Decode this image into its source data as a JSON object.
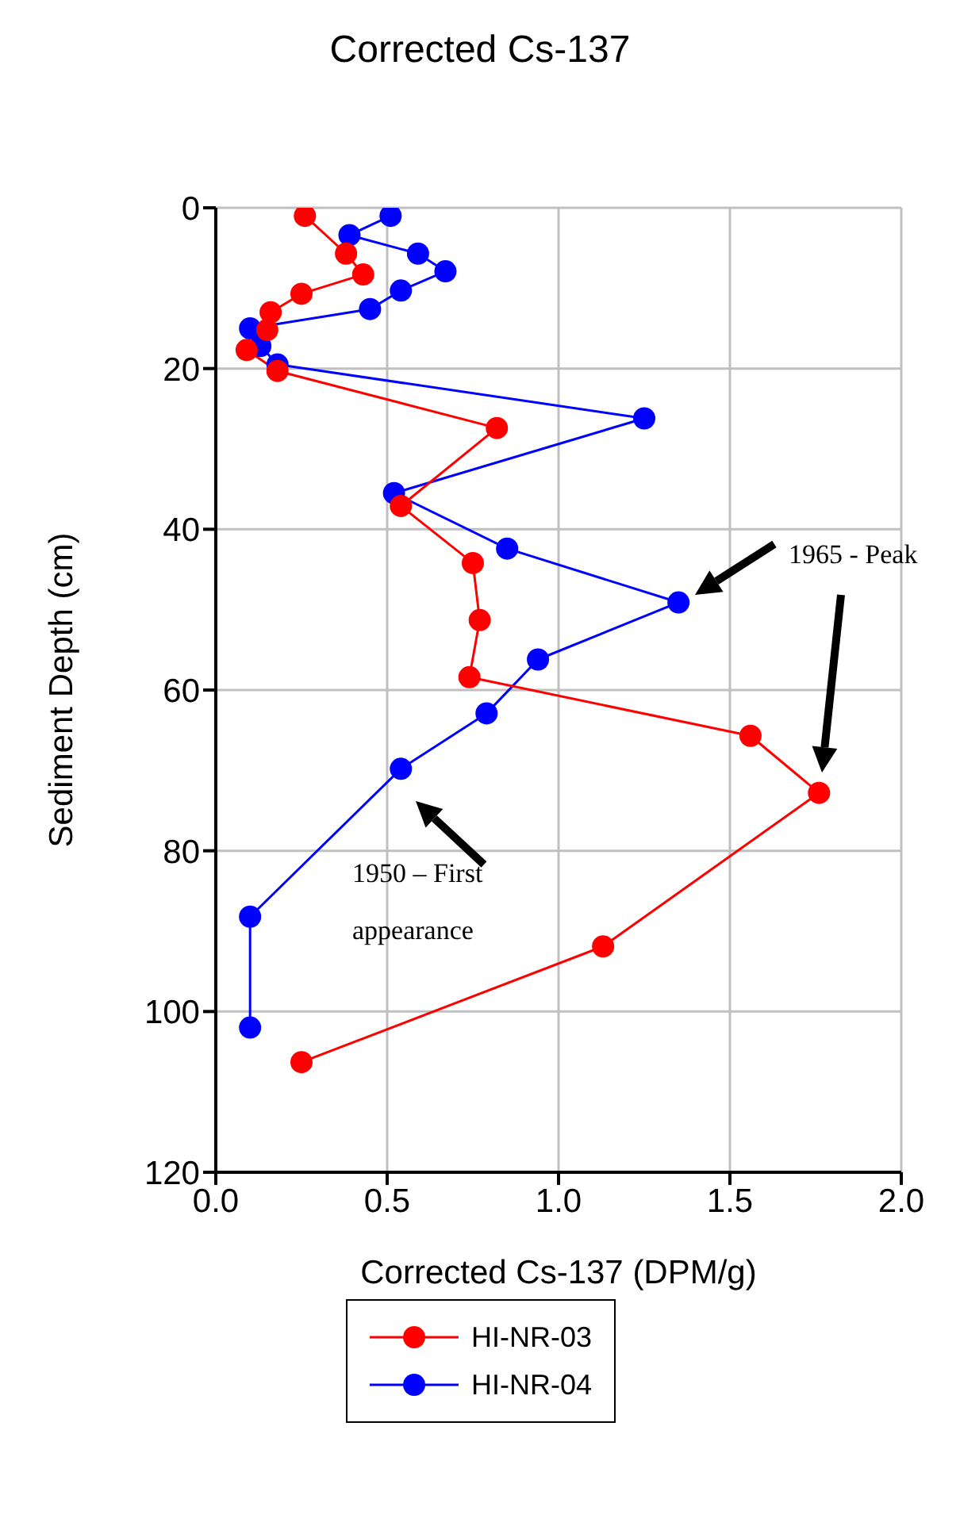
{
  "chart_data": {
    "type": "line",
    "title": "Corrected Cs-137",
    "xlabel": "Corrected Cs-137 (DPM/g)",
    "ylabel": "Sediment Depth (cm)",
    "xlim": [
      0,
      2
    ],
    "xticks": [
      {
        "value": 0,
        "label": "0.0"
      },
      {
        "value": 0.5,
        "label": "0.5"
      },
      {
        "value": 1,
        "label": "1.0"
      },
      {
        "value": 1.5,
        "label": "1.5"
      },
      {
        "value": 2,
        "label": "2.0"
      }
    ],
    "ylim": [
      120,
      0
    ],
    "yticks": [
      0,
      20,
      40,
      60,
      80,
      100,
      120
    ],
    "grid": true,
    "legend": "bottom",
    "marker": "circle",
    "line_style": "solid",
    "series": [
      {
        "name": "HI-NR-03",
        "color": "#ff0000",
        "x": [
          0.26,
          0.38,
          0.43,
          0.25,
          0.16,
          0.15,
          0.09,
          0.18,
          0.82,
          0.54,
          0.75,
          0.77,
          0.74,
          1.56,
          1.76,
          1.13,
          0.25
        ],
        "values": [
          1,
          5.7,
          8.3,
          10.7,
          13,
          15.2,
          17.7,
          20.3,
          27.4,
          37.1,
          44.2,
          51.3,
          58.4,
          65.7,
          72.8,
          91.9,
          106.3
        ]
      },
      {
        "name": "HI-NR-04",
        "color": "#0000ff",
        "x": [
          0.51,
          0.39,
          0.59,
          0.67,
          0.54,
          0.45,
          0.1,
          0.13,
          0.18,
          1.25,
          0.52,
          0.85,
          1.35,
          0.94,
          0.79,
          0.54,
          0.1,
          0.1
        ],
        "values": [
          1,
          3.4,
          5.7,
          7.9,
          10.3,
          12.6,
          15,
          17.2,
          19.5,
          26.2,
          35.5,
          42.4,
          49.1,
          56.2,
          62.9,
          69.8,
          88.2,
          102
        ]
      }
    ],
    "annotations": [
      "1965 - Peak",
      "1950 – First appearance"
    ]
  }
}
